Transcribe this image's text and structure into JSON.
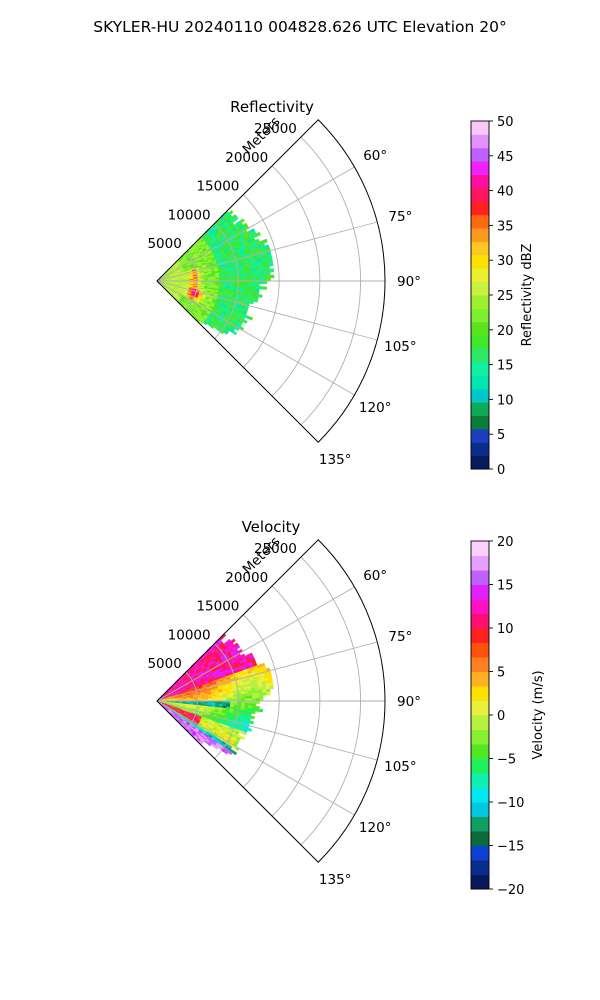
{
  "figure": {
    "title": "SKYLER-HU  20240110  004828.626 UTC Elevation 20°"
  },
  "chart_data": [
    {
      "type": "heatmap",
      "projection": "polar-sector",
      "title": "Reflectivity",
      "range_label": "Meters",
      "range_ticks": [
        5000,
        10000,
        15000,
        20000,
        25000
      ],
      "range_tick_labels": [
        "5000",
        "10000",
        "15000",
        "20000",
        "25000"
      ],
      "rmax": 28000,
      "azimuth_range_deg": [
        45,
        135
      ],
      "azimuth_ticks_deg": [
        60,
        75,
        90,
        105,
        120,
        135
      ],
      "azimuth_tick_labels": [
        "60°",
        "75°",
        "90°",
        "105°",
        "120°",
        "135°"
      ],
      "grid": true,
      "data_extent": {
        "azimuth_deg": [
          45,
          135
        ],
        "max_range_m": 14000
      },
      "colorbar": {
        "label": "Reflectivity dBZ",
        "min": 0,
        "max": 50,
        "ticks": [
          0,
          5,
          10,
          15,
          20,
          25,
          30,
          35,
          40,
          45,
          50
        ],
        "tick_labels": [
          "0",
          "5",
          "10",
          "15",
          "20",
          "25",
          "30",
          "35",
          "40",
          "45",
          "50"
        ],
        "colors": [
          "#061a5c",
          "#0a2c8a",
          "#1a40c0",
          "#0c7a3a",
          "#11a85a",
          "#00c8c8",
          "#00e6b0",
          "#10f0a0",
          "#2ee86a",
          "#3ee82a",
          "#5ae41e",
          "#7ef034",
          "#9cf030",
          "#c8f040",
          "#e8f030",
          "#ffe000",
          "#ffc820",
          "#ff9a20",
          "#ff6a10",
          "#ff2020",
          "#ff1860",
          "#ff10a0",
          "#f020ff",
          "#c060ff",
          "#e090ff",
          "#f8c8f8"
        ]
      }
    },
    {
      "type": "heatmap",
      "projection": "polar-sector",
      "title": "Velocity",
      "range_label": "Meters",
      "range_ticks": [
        5000,
        10000,
        15000,
        20000,
        25000
      ],
      "range_tick_labels": [
        "5000",
        "10000",
        "15000",
        "20000",
        "25000"
      ],
      "rmax": 28000,
      "azimuth_range_deg": [
        45,
        135
      ],
      "azimuth_ticks_deg": [
        60,
        75,
        90,
        105,
        120,
        135
      ],
      "azimuth_tick_labels": [
        "60°",
        "75°",
        "90°",
        "105°",
        "120°",
        "135°"
      ],
      "grid": true,
      "data_extent": {
        "azimuth_deg": [
          45,
          135
        ],
        "max_range_m": 14000
      },
      "colorbar": {
        "label": "Velocity (m/s)",
        "min": -20,
        "max": 20,
        "ticks": [
          -20,
          -15,
          -10,
          -5,
          0,
          5,
          10,
          15,
          20
        ],
        "tick_labels": [
          "−20",
          "−15",
          "−10",
          "−5",
          "0",
          "5",
          "10",
          "15",
          "20"
        ],
        "colors": [
          "#061a5c",
          "#0a2c8a",
          "#1040d0",
          "#0c6a3a",
          "#10a060",
          "#00c8e0",
          "#00e8f0",
          "#10f0b0",
          "#20f060",
          "#50e820",
          "#88f030",
          "#b8f040",
          "#e8f040",
          "#ffe000",
          "#ffb020",
          "#ff8020",
          "#ff5010",
          "#ff2020",
          "#ff1070",
          "#ff10c0",
          "#e020ff",
          "#c060ff",
          "#e8a0ff",
          "#f8d0f8"
        ]
      }
    }
  ]
}
